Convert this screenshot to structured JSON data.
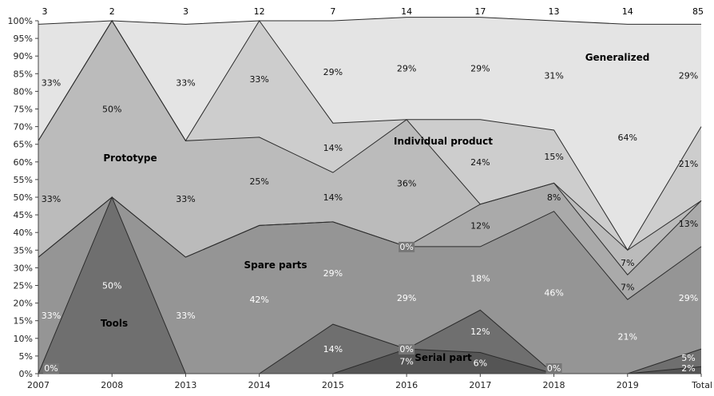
{
  "chart_data": {
    "type": "area",
    "stacked": "percent",
    "title": "",
    "xlabel": "",
    "ylabel": "",
    "ylim": [
      0,
      100
    ],
    "yticks": [
      "0%",
      "5%",
      "10%",
      "15%",
      "20%",
      "25%",
      "30%",
      "35%",
      "40%",
      "45%",
      "50%",
      "55%",
      "60%",
      "65%",
      "70%",
      "75%",
      "80%",
      "85%",
      "90%",
      "95%",
      "100%"
    ],
    "categories": [
      "2007",
      "2008",
      "2013",
      "2014",
      "2015",
      "2016",
      "2017",
      "2018",
      "2019",
      "Total"
    ],
    "counts": [
      "3",
      "2",
      "3",
      "12",
      "7",
      "14",
      "17",
      "13",
      "14",
      "85"
    ],
    "series": [
      {
        "name": "Serial part",
        "color": "#555555",
        "values": [
          0,
          0,
          0,
          0,
          0,
          7,
          6,
          0,
          0,
          2
        ],
        "labels": [
          "",
          "",
          "",
          "",
          "",
          "7%",
          "6%",
          "0%",
          "",
          "2%"
        ]
      },
      {
        "name": "Tools",
        "color": "#6f6f6f",
        "values": [
          0,
          50,
          0,
          0,
          14,
          0,
          12,
          0,
          0,
          5
        ],
        "labels": [
          "0%",
          "50%",
          "",
          "",
          "14%",
          "0%",
          "12%",
          "",
          "",
          "5%"
        ]
      },
      {
        "name": "Spare parts",
        "color": "#959595",
        "values": [
          33,
          0,
          33,
          42,
          29,
          29,
          18,
          46,
          21,
          29
        ],
        "labels": [
          "33%",
          "",
          "33%",
          "42%",
          "29%",
          "29%",
          "18%",
          "46%",
          "21%",
          "29%"
        ]
      },
      {
        "name": "",
        "color": "#aaaaaa",
        "values": [
          0,
          0,
          0,
          0,
          0,
          0,
          12,
          8,
          7,
          13
        ],
        "labels": [
          "",
          "",
          "",
          "",
          "",
          "0%",
          "12%",
          "8%",
          "7%",
          "13%"
        ]
      },
      {
        "name": "Prototype",
        "color": "#bbbbbb",
        "values": [
          33,
          50,
          33,
          25,
          14,
          36,
          0,
          0,
          7,
          0
        ],
        "labels": [
          "33%",
          "50%",
          "33%",
          "25%",
          "14%",
          "36%",
          "",
          "",
          "7%",
          ""
        ]
      },
      {
        "name": "Individual product",
        "color": "#cdcdcd",
        "values": [
          0,
          0,
          0,
          33,
          14,
          0,
          24,
          15,
          0,
          21
        ],
        "labels": [
          "",
          "",
          "",
          "33%",
          "14%",
          "",
          "24%",
          "15%",
          "",
          "21%"
        ]
      },
      {
        "name": "Generalized",
        "color": "#e4e4e4",
        "values": [
          33,
          0,
          33,
          0,
          29,
          29,
          29,
          31,
          64,
          29
        ],
        "labels": [
          "33%",
          "",
          "33%",
          "",
          "29%",
          "29%",
          "29%",
          "31%",
          "64%",
          "29%"
        ]
      }
    ]
  }
}
